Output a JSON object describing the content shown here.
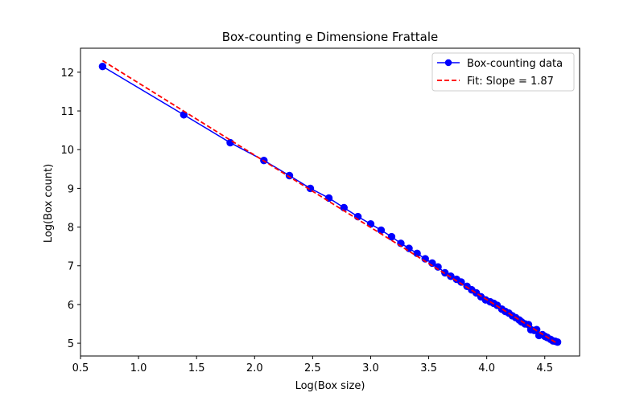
{
  "chart_data": {
    "type": "line",
    "title": "Box-counting e Dimensione Frattale",
    "xlabel": "Log(Box size)",
    "ylabel": "Log(Box count)",
    "xlim": [
      0.5,
      4.8
    ],
    "ylim": [
      4.67,
      12.62
    ],
    "xticks": [
      "0.5",
      "1.0",
      "1.5",
      "2.0",
      "2.5",
      "3.0",
      "3.5",
      "4.0",
      "4.5"
    ],
    "yticks": [
      "5",
      "6",
      "7",
      "8",
      "9",
      "10",
      "11",
      "12"
    ],
    "grid": false,
    "legend_position": "top-right",
    "series": [
      {
        "name": "Box-counting data",
        "style": "solid-line-with-markers",
        "color": "#0000ff",
        "x": [
          0.69,
          1.39,
          1.79,
          2.08,
          2.3,
          2.48,
          2.64,
          2.77,
          2.89,
          3.0,
          3.09,
          3.18,
          3.26,
          3.33,
          3.4,
          3.47,
          3.53,
          3.58,
          3.64,
          3.69,
          3.74,
          3.78,
          3.83,
          3.87,
          3.91,
          3.95,
          3.99,
          4.03,
          4.06,
          4.09,
          4.13,
          4.16,
          4.19,
          4.22,
          4.25,
          4.28,
          4.3,
          4.33,
          4.36,
          4.38,
          4.41,
          4.43,
          4.45,
          4.48,
          4.5,
          4.52,
          4.55,
          4.57,
          4.59,
          4.61
        ],
        "y": [
          12.15,
          10.9,
          10.18,
          9.72,
          9.33,
          9.0,
          8.75,
          8.5,
          8.27,
          8.08,
          7.92,
          7.75,
          7.58,
          7.45,
          7.32,
          7.18,
          7.07,
          6.97,
          6.82,
          6.73,
          6.65,
          6.58,
          6.47,
          6.38,
          6.3,
          6.2,
          6.12,
          6.07,
          6.03,
          5.98,
          5.88,
          5.82,
          5.78,
          5.71,
          5.66,
          5.6,
          5.55,
          5.5,
          5.48,
          5.35,
          5.33,
          5.35,
          5.2,
          5.22,
          5.18,
          5.15,
          5.1,
          5.06,
          5.05,
          5.03
        ]
      },
      {
        "name": "Fit: Slope = 1.87",
        "style": "dashed-line",
        "color": "#ff0000",
        "x": [
          0.69,
          4.61
        ],
        "y": [
          12.3,
          4.99
        ]
      }
    ]
  }
}
